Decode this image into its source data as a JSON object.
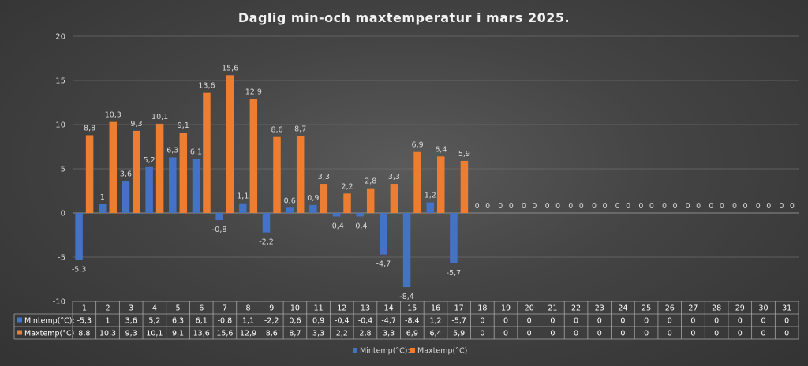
{
  "chart_data": {
    "type": "bar",
    "title": "Daglig min-och maxtemperatur i mars 2025.",
    "xlabel": "",
    "ylabel": "",
    "ylim": [
      -10,
      20
    ],
    "yticks": [
      -10,
      -5,
      0,
      5,
      10,
      15,
      20
    ],
    "grid": true,
    "legend_position": "bottom",
    "data_table": true,
    "categories": [
      "1",
      "2",
      "3",
      "4",
      "5",
      "6",
      "7",
      "8",
      "9",
      "10",
      "11",
      "12",
      "13",
      "14",
      "15",
      "16",
      "17",
      "18",
      "19",
      "20",
      "21",
      "22",
      "23",
      "24",
      "25",
      "26",
      "27",
      "28",
      "29",
      "30",
      "31"
    ],
    "series": [
      {
        "name": "Mintemp(°C):",
        "color": "#4472c4",
        "values": [
          -5.3,
          1,
          3.6,
          5.2,
          6.3,
          6.1,
          -0.8,
          1.1,
          -2.2,
          0.6,
          0.9,
          -0.4,
          -0.4,
          -4.7,
          -8.4,
          1.2,
          -5.7,
          0,
          0,
          0,
          0,
          0,
          0,
          0,
          0,
          0,
          0,
          0,
          0,
          0,
          0
        ]
      },
      {
        "name": "Maxtemp(°C)",
        "color": "#ed7d31",
        "values": [
          8.8,
          10.3,
          9.3,
          10.1,
          9.1,
          13.6,
          15.6,
          12.9,
          8.6,
          8.7,
          3.3,
          2.2,
          2.8,
          3.3,
          6.9,
          6.4,
          5.9,
          0,
          0,
          0,
          0,
          0,
          0,
          0,
          0,
          0,
          0,
          0,
          0,
          0,
          0
        ]
      }
    ]
  }
}
